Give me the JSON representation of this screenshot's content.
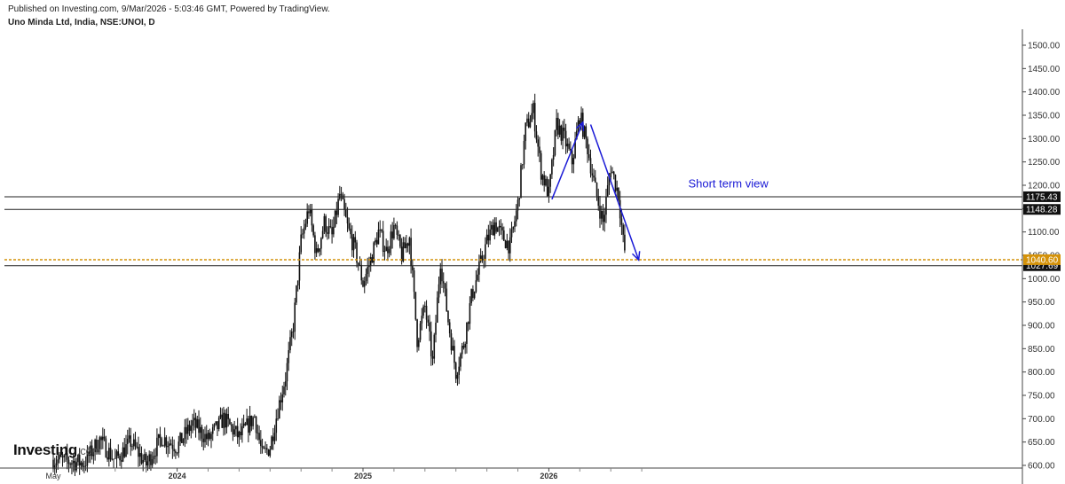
{
  "header": {
    "published": "Published on Investing.com, 9/Mar/2026 - 5:03:46 GMT, Powered by TradingView.",
    "symbol": "Uno Minda Ltd, India, NSE:UNOI, D"
  },
  "logo": {
    "main": "Investing",
    "sub": ".com"
  },
  "colors": {
    "candles": "#111111",
    "level_line": "#222222",
    "current_price": "#d4920a",
    "arrow": "#1a1ad6",
    "label_bg": "#111111"
  },
  "chart_data": {
    "type": "candlestick",
    "title": "Uno Minda Ltd, India, NSE:UNOI, D",
    "ylim": [
      590,
      1530
    ],
    "y_ticks": [
      600,
      650,
      700,
      750,
      800,
      850,
      900,
      950,
      1000,
      1050,
      1100,
      1150,
      1200,
      1250,
      1300,
      1350,
      1400,
      1450,
      1500
    ],
    "y_tick_labels": [
      "600.00",
      "650.00",
      "700.00",
      "750.00",
      "800.00",
      "850.00",
      "900.00",
      "950.00",
      "1000.00",
      "1050.00",
      "1100.00",
      "1150.00",
      "1200.00",
      "1250.00",
      "1300.00",
      "1350.00",
      "1400.00",
      "1450.00",
      "1500.00"
    ],
    "x_tick_labels": [
      {
        "label": "May",
        "bold": false,
        "t": 0
      },
      {
        "label": "2024",
        "bold": true,
        "t": 8
      },
      {
        "label": "2025",
        "bold": true,
        "t": 20
      },
      {
        "label": "2026",
        "bold": true,
        "t": 32
      }
    ],
    "x_minor_ticks": [
      4,
      6,
      10,
      12,
      14,
      16,
      18,
      22,
      24,
      26,
      28,
      30,
      34,
      36,
      38
    ],
    "x_range": [
      0,
      66
    ],
    "price_path": [
      [
        0,
        612
      ],
      [
        2,
        605
      ],
      [
        3,
        655
      ],
      [
        4,
        610
      ],
      [
        5,
        650
      ],
      [
        6,
        602
      ],
      [
        7,
        660
      ],
      [
        8,
        640
      ],
      [
        9,
        690
      ],
      [
        10,
        655
      ],
      [
        11,
        700
      ],
      [
        12,
        660
      ],
      [
        13,
        705
      ],
      [
        13.5,
        620
      ],
      [
        14,
        640
      ],
      [
        14.5,
        720
      ],
      [
        15,
        790
      ],
      [
        15.5,
        900
      ],
      [
        16,
        1080
      ],
      [
        16.5,
        1150
      ],
      [
        17,
        1050
      ],
      [
        17.5,
        1120
      ],
      [
        18,
        1090
      ],
      [
        18.5,
        1180
      ],
      [
        19,
        1110
      ],
      [
        19.5,
        1060
      ],
      [
        20,
        990
      ],
      [
        20.5,
        1040
      ],
      [
        21,
        1100
      ],
      [
        21.5,
        1060
      ],
      [
        22,
        1110
      ],
      [
        22.5,
        1050
      ],
      [
        23,
        1090
      ],
      [
        23.5,
        870
      ],
      [
        24,
        940
      ],
      [
        24.5,
        820
      ],
      [
        25,
        1040
      ],
      [
        25.5,
        910
      ],
      [
        26,
        800
      ],
      [
        26.5,
        860
      ],
      [
        27,
        960
      ],
      [
        27.5,
        1020
      ],
      [
        28,
        1080
      ],
      [
        28.5,
        1120
      ],
      [
        29,
        1090
      ],
      [
        29.5,
        1070
      ],
      [
        30,
        1160
      ],
      [
        30.5,
        1320
      ],
      [
        31,
        1360
      ],
      [
        31.5,
        1230
      ],
      [
        32,
        1180
      ],
      [
        32.5,
        1330
      ],
      [
        33,
        1300
      ],
      [
        33.5,
        1250
      ],
      [
        34,
        1350
      ],
      [
        34.5,
        1280
      ],
      [
        35,
        1190
      ],
      [
        35.5,
        1120
      ],
      [
        36,
        1240
      ],
      [
        36.5,
        1180
      ],
      [
        36.8,
        1080
      ],
      [
        37,
        1040
      ]
    ],
    "levels": [
      {
        "value": 1175.43,
        "label": "1175.43"
      },
      {
        "value": 1148.28,
        "label": "1148.28"
      },
      {
        "value": 1027.69,
        "label": "1027.69"
      }
    ],
    "current_price": {
      "value": 1040.6,
      "label": "1040.60"
    },
    "arrows": [
      {
        "from": [
          32.2,
          1170
        ],
        "to": [
          34.2,
          1335
        ]
      },
      {
        "from": [
          34.7,
          1330
        ],
        "to": [
          37.8,
          1040
        ]
      }
    ],
    "annotation": {
      "text": "Short term view",
      "at": [
        41,
        1195
      ]
    }
  }
}
